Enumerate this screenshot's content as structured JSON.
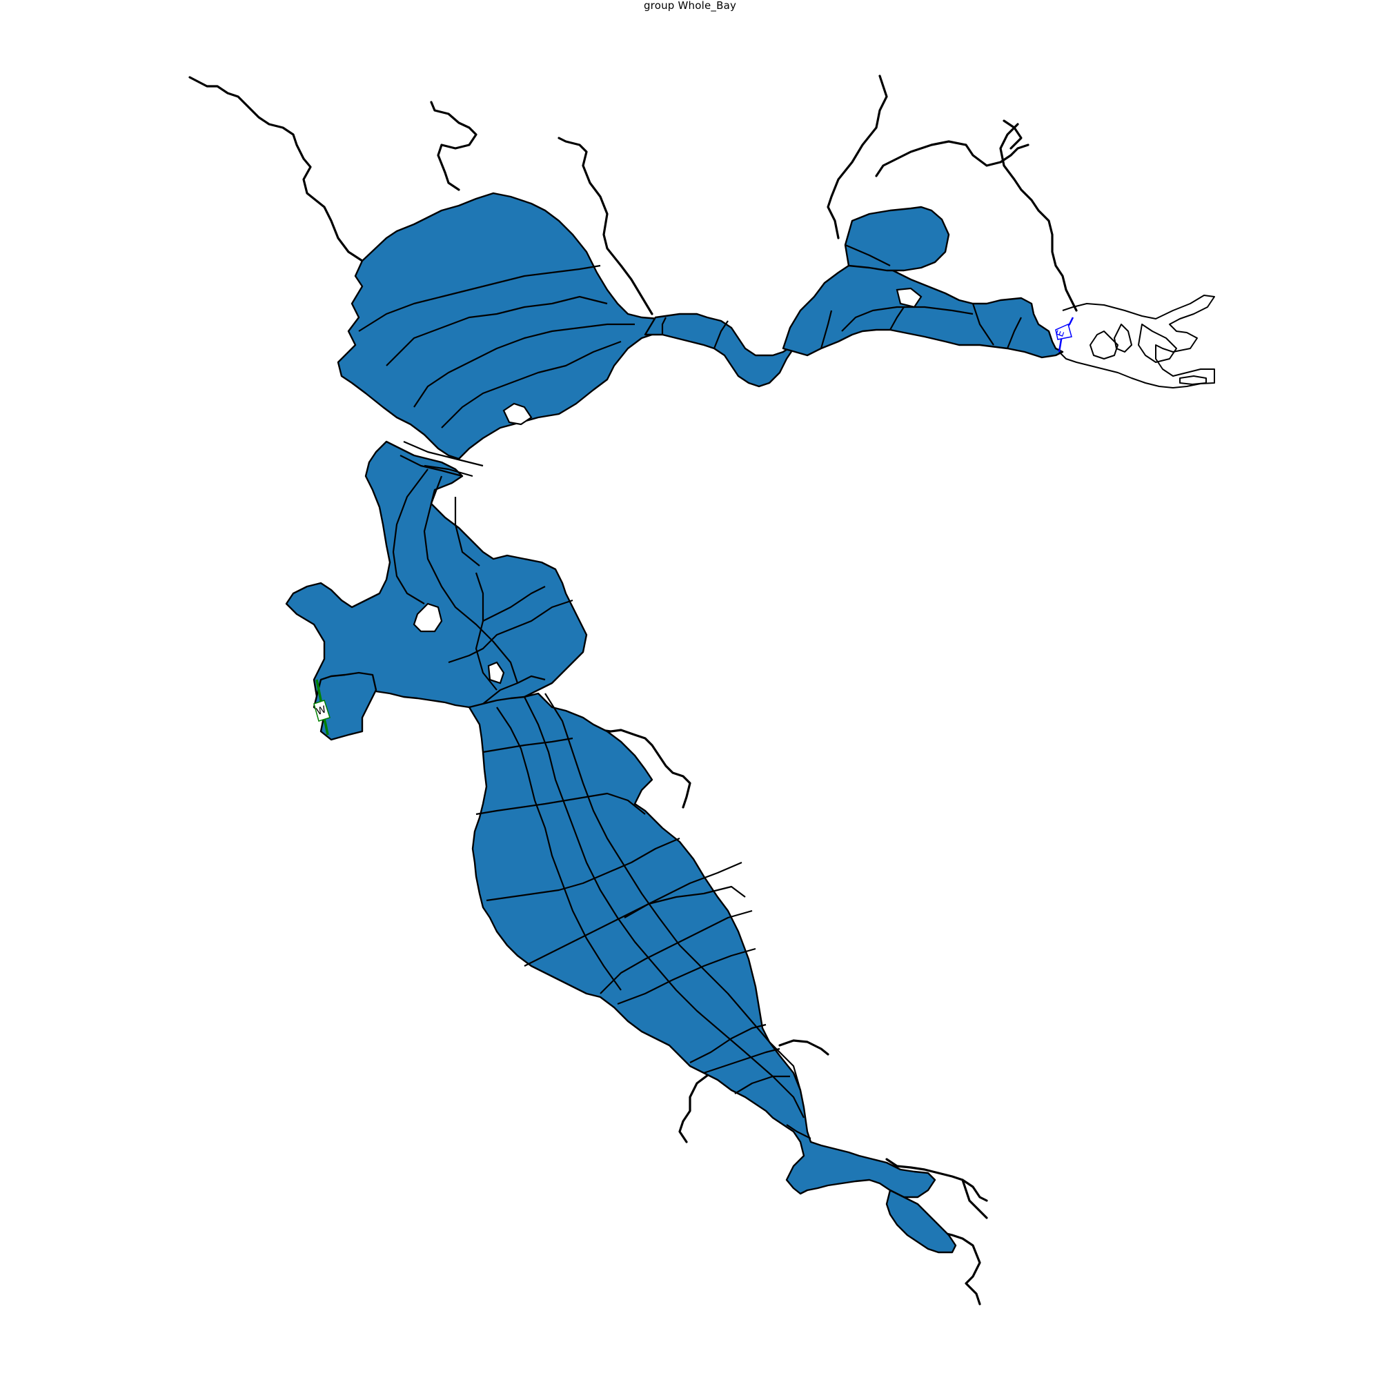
{
  "title": "group Whole_Bay",
  "colors": {
    "water_fill": "#1f77b4",
    "edge": "#000000",
    "west_boundary": "#008000",
    "east_boundary": "#0000ff",
    "background": "#ffffff"
  },
  "boundaries": {
    "west": {
      "label": "W"
    },
    "east": {
      "label": "E"
    }
  }
}
